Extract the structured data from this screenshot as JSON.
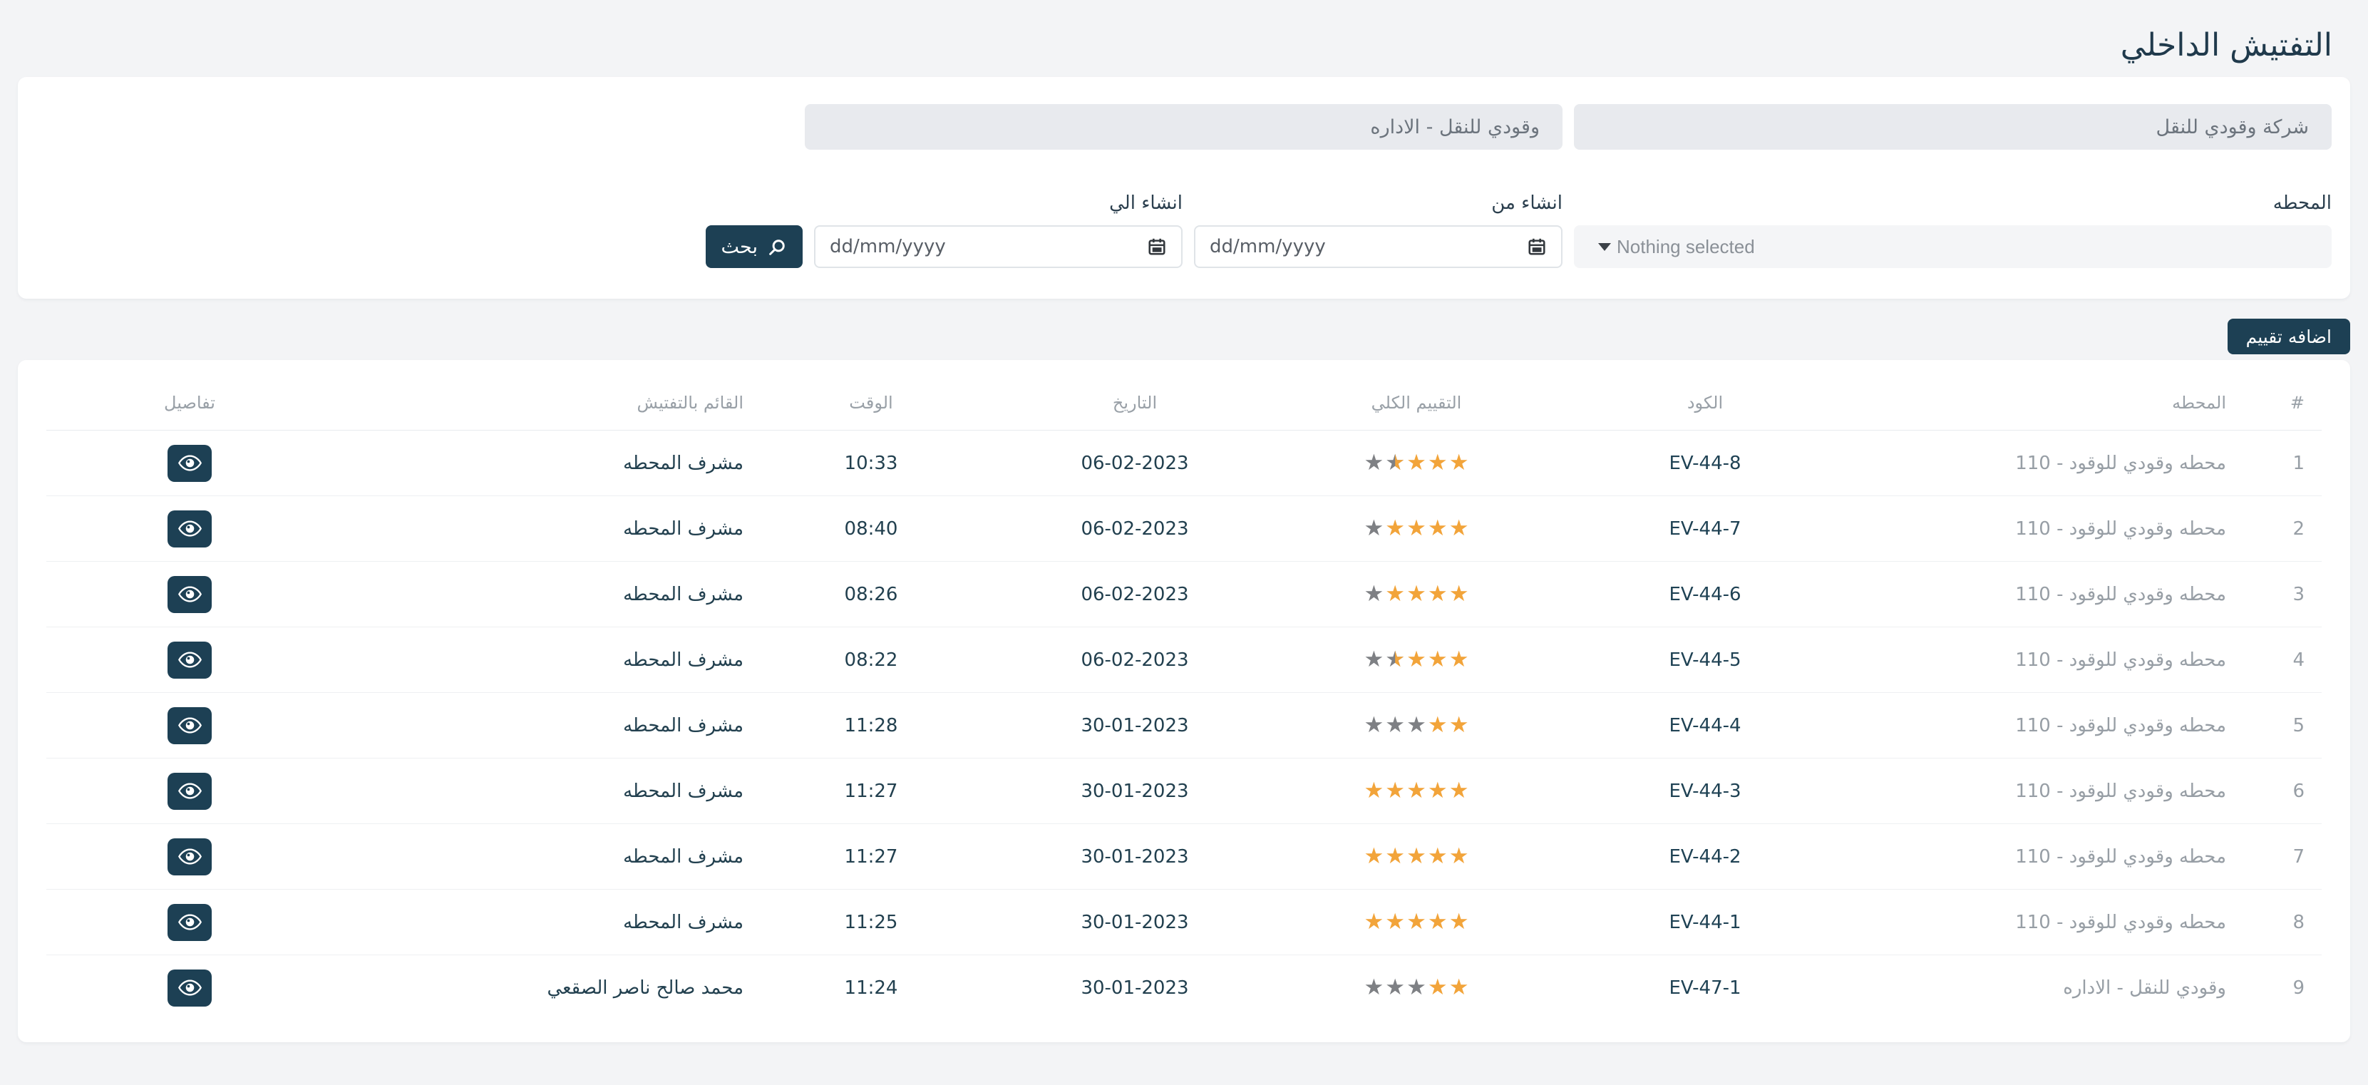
{
  "page": {
    "title": "التفتيش الداخلي"
  },
  "filters": {
    "company_value": "شركة وقودي للنقل",
    "branch_value": "وقودي للنقل - الاداره",
    "station_label": "المحطه",
    "station_placeholder": "Nothing selected",
    "created_from_label": "انشاء من",
    "created_to_label": "انشاء الي",
    "date_placeholder": "dd/mm/yyyy",
    "search_label": "بحث"
  },
  "actions": {
    "add_evaluation_label": "اضافه تقييم"
  },
  "table": {
    "headers": {
      "index": "#",
      "station": "المحطه",
      "code": "الكود",
      "rating": "التقييم الكلي",
      "date": "التاريخ",
      "time": "الوقت",
      "inspector": "القائم بالتفتيش",
      "details": "تفاصيل"
    },
    "rows": [
      {
        "index": "1",
        "station": "محطه وقودي للوقود - 110",
        "code": "EV-44-8",
        "rating": 3.5,
        "date": "06-02-2023",
        "time": "10:33",
        "inspector": "مشرف المحطه"
      },
      {
        "index": "2",
        "station": "محطه وقودي للوقود - 110",
        "code": "EV-44-7",
        "rating": 4,
        "date": "06-02-2023",
        "time": "08:40",
        "inspector": "مشرف المحطه"
      },
      {
        "index": "3",
        "station": "محطه وقودي للوقود - 110",
        "code": "EV-44-6",
        "rating": 4,
        "date": "06-02-2023",
        "time": "08:26",
        "inspector": "مشرف المحطه"
      },
      {
        "index": "4",
        "station": "محطه وقودي للوقود - 110",
        "code": "EV-44-5",
        "rating": 3.5,
        "date": "06-02-2023",
        "time": "08:22",
        "inspector": "مشرف المحطه"
      },
      {
        "index": "5",
        "station": "محطه وقودي للوقود - 110",
        "code": "EV-44-4",
        "rating": 2,
        "date": "30-01-2023",
        "time": "11:28",
        "inspector": "مشرف المحطه"
      },
      {
        "index": "6",
        "station": "محطه وقودي للوقود - 110",
        "code": "EV-44-3",
        "rating": 5,
        "date": "30-01-2023",
        "time": "11:27",
        "inspector": "مشرف المحطه"
      },
      {
        "index": "7",
        "station": "محطه وقودي للوقود - 110",
        "code": "EV-44-2",
        "rating": 5,
        "date": "30-01-2023",
        "time": "11:27",
        "inspector": "مشرف المحطه"
      },
      {
        "index": "8",
        "station": "محطه وقودي للوقود - 110",
        "code": "EV-44-1",
        "rating": 5,
        "date": "30-01-2023",
        "time": "11:25",
        "inspector": "مشرف المحطه"
      },
      {
        "index": "9",
        "station": "وقودي للنقل - الاداره",
        "code": "EV-47-1",
        "rating": 2,
        "date": "30-01-2023",
        "time": "11:24",
        "inspector": "محمد صالح ناصر الصقعي"
      }
    ]
  },
  "icons": {
    "search": "magnifier",
    "calendar": "calendar",
    "details": "eye",
    "select_caret": "caret-down"
  },
  "colors": {
    "accent": "#1d4054",
    "star_filled": "#f2a43a",
    "star_empty": "#7e8084",
    "page_background": "#f3f4f6"
  }
}
